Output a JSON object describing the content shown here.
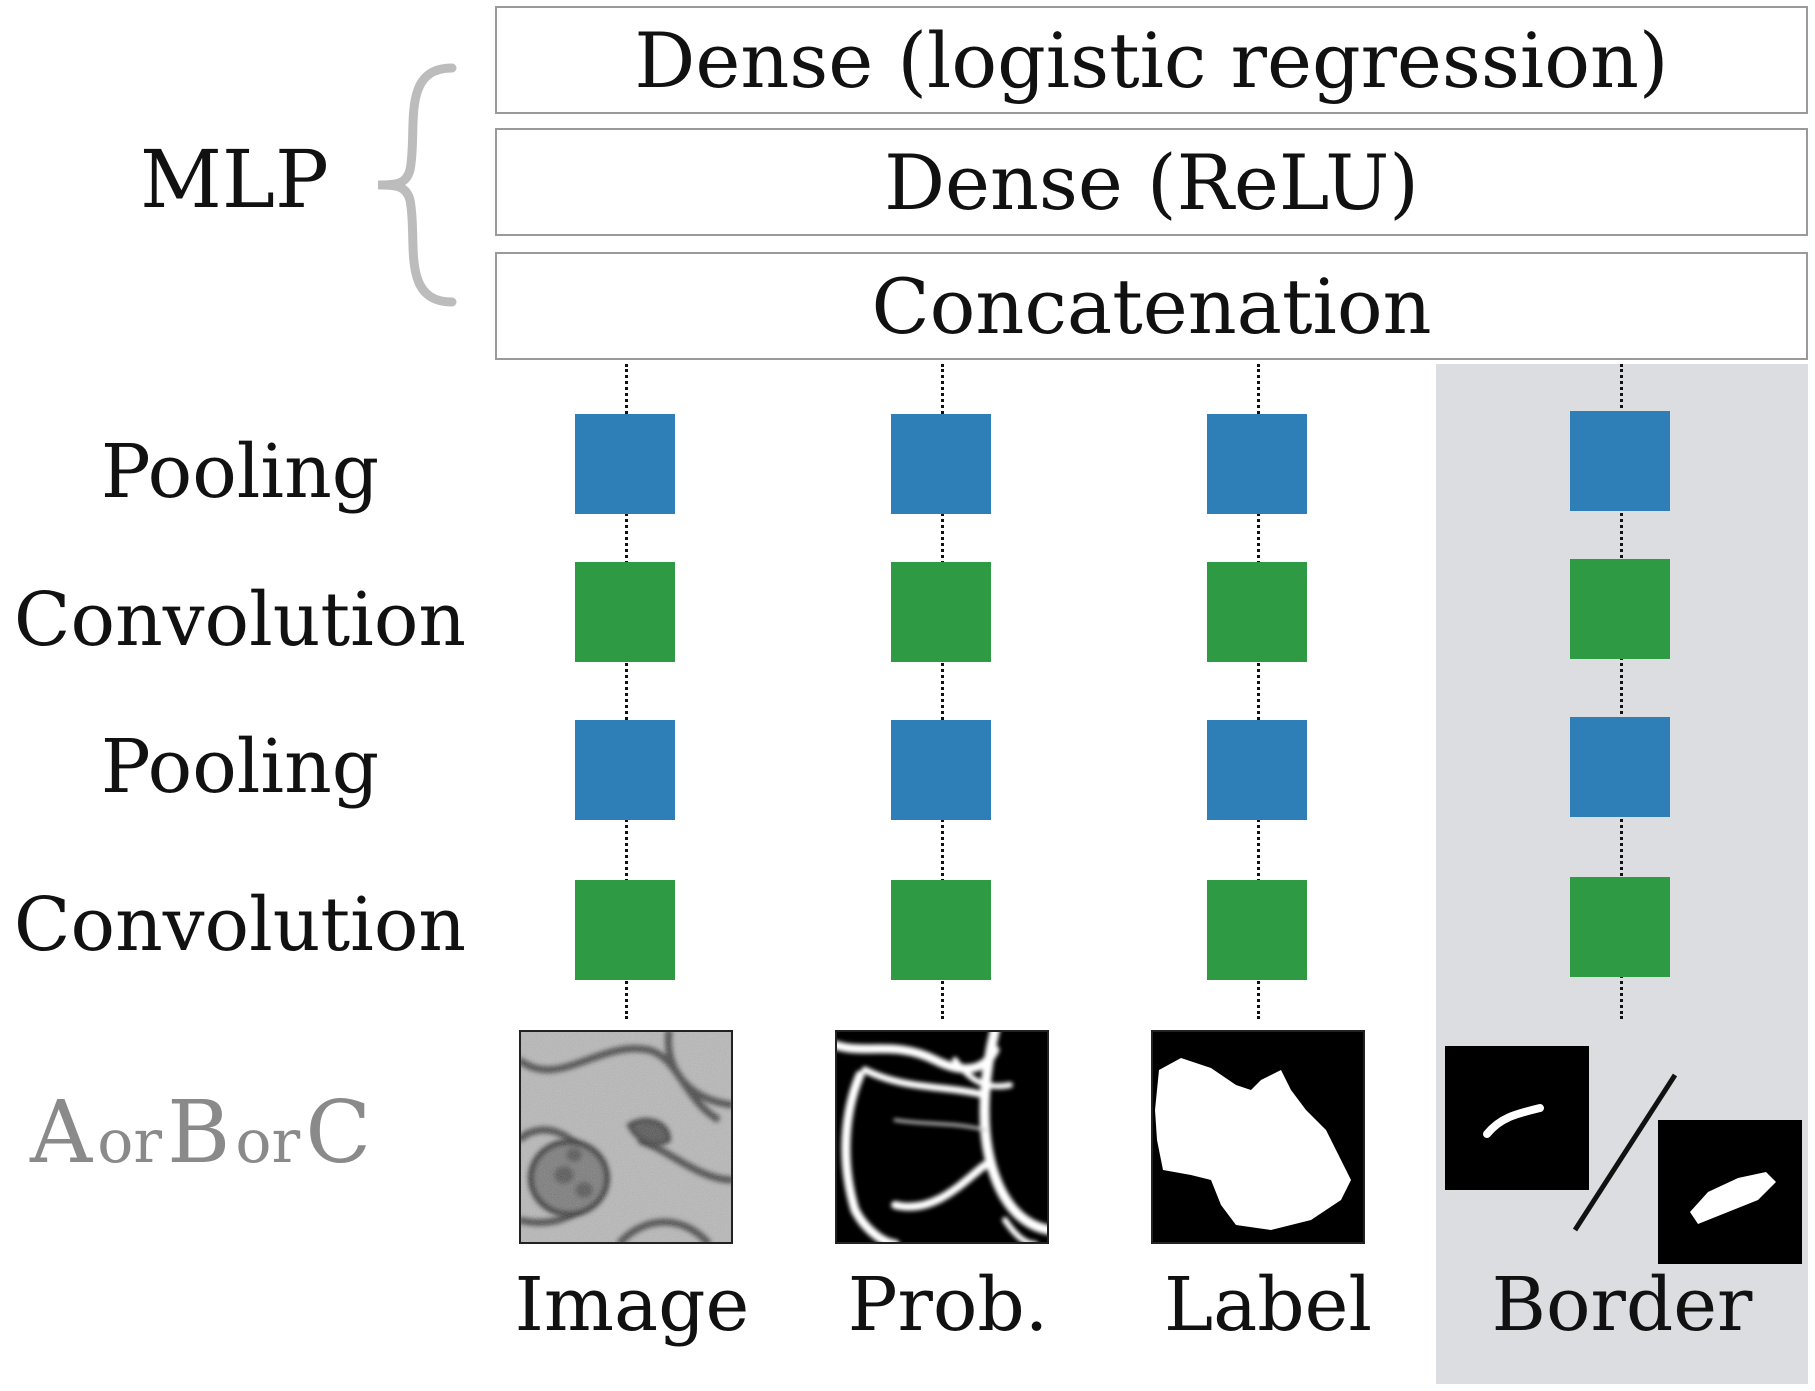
{
  "mlp": {
    "label": "MLP",
    "layers": [
      "Dense (logistic regression)",
      "Dense (ReLU)",
      "Concatenation"
    ]
  },
  "rows": [
    "Pooling",
    "Convolution",
    "Pooling",
    "Convolution"
  ],
  "row_types": [
    "pooling",
    "convolution",
    "pooling",
    "convolution"
  ],
  "columns": [
    "Image",
    "Prob.",
    "Label",
    "Border"
  ],
  "input_choice": {
    "letters": [
      "A",
      "B",
      "C"
    ],
    "connector": "or"
  },
  "colors": {
    "pooling": "#2e7fb8",
    "convolution": "#2e9a43",
    "brace": "#bcbcbc",
    "highlight_panel": "#dcdde0",
    "input_choice_text": "#8a8a8a"
  }
}
